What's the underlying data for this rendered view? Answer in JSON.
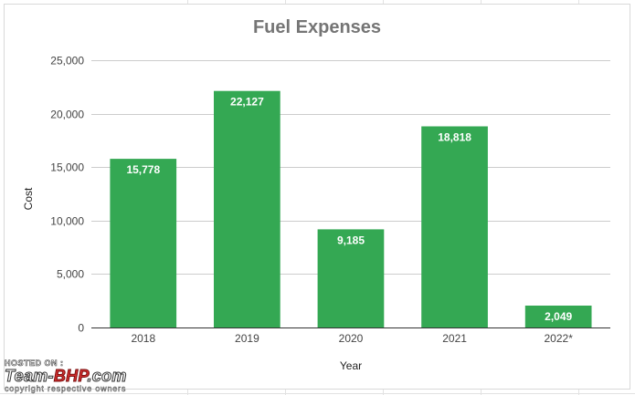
{
  "chart_data": {
    "type": "bar",
    "title": "Fuel Expenses",
    "xlabel": "Year",
    "ylabel": "Cost",
    "categories": [
      "2018",
      "2019",
      "2020",
      "2021",
      "2022*"
    ],
    "values": [
      15778,
      22127,
      9185,
      18818,
      2049
    ],
    "value_labels": [
      "15,778",
      "22,127",
      "9,185",
      "18,818",
      "2,049"
    ],
    "ylim": [
      0,
      25000
    ],
    "yticks": [
      0,
      5000,
      10000,
      15000,
      20000,
      25000
    ],
    "ytick_labels": [
      "0",
      "5,000",
      "10,000",
      "15,000",
      "20,000",
      "25,000"
    ],
    "grid": true,
    "legend": "none",
    "bar_color": "#34a853"
  },
  "watermark": {
    "hosted": "HOSTED ON :",
    "brand_prefix": "Team-",
    "brand_accent": "BHP",
    "brand_suffix": ".com",
    "copyright": "copyright respective owners"
  }
}
